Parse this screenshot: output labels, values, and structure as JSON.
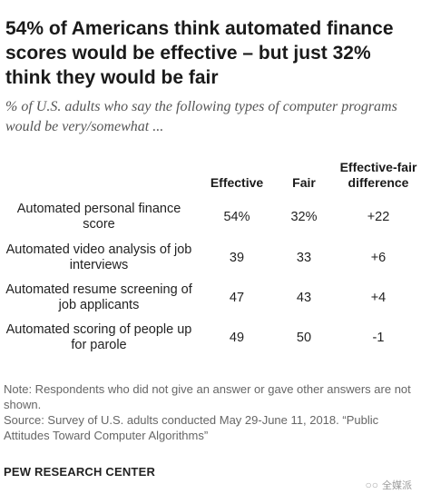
{
  "title": "54% of Americans think automated finance scores would be effective – but just 32% think they would be fair",
  "subtitle": "% of U.S. adults who say the following types of computer programs would be very/somewhat ...",
  "chart_data": {
    "type": "table",
    "columns": [
      "Effective",
      "Fair",
      "Effective-fair difference"
    ],
    "rows": [
      {
        "label": "Automated personal finance score",
        "effective": "54%",
        "fair": "32%",
        "difference": "+22"
      },
      {
        "label": "Automated video analysis of job interviews",
        "effective": "39",
        "fair": "33",
        "difference": "+6"
      },
      {
        "label": "Automated resume screening of job applicants",
        "effective": "47",
        "fair": "43",
        "difference": "+4"
      },
      {
        "label": "Automated scoring of people up for parole",
        "effective": "49",
        "fair": "50",
        "difference": "-1"
      }
    ]
  },
  "note": "Note: Respondents who did not give an answer or gave other answers are not shown.",
  "source": "Source: Survey of U.S. adults conducted May 29-June 11, 2018. “Public Attitudes Toward Computer Algorithms”",
  "brand": "PEW RESEARCH CENTER",
  "watermark": {
    "icon": "wechat-icon",
    "text": "全媒派"
  }
}
